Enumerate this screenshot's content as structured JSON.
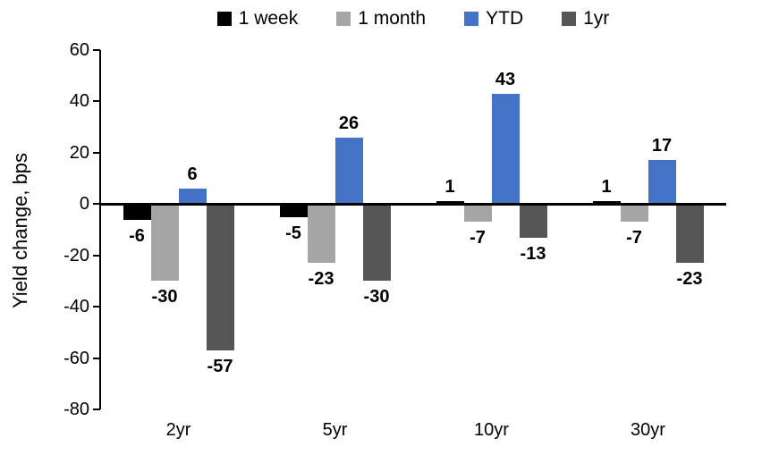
{
  "chart_data": {
    "type": "bar",
    "title": "",
    "ylabel": "Yield change, bps",
    "xlabel": "",
    "categories": [
      "2yr",
      "5yr",
      "10yr",
      "30yr"
    ],
    "series": [
      {
        "name": "1 week",
        "color": "#000000",
        "values": [
          -6,
          -5,
          1,
          1
        ]
      },
      {
        "name": "1 month",
        "color": "#A5A5A5",
        "values": [
          -30,
          -23,
          -7,
          -7
        ]
      },
      {
        "name": "YTD",
        "color": "#4472C4",
        "values": [
          6,
          26,
          43,
          17
        ]
      },
      {
        "name": "1yr",
        "color": "#555555",
        "values": [
          -57,
          -30,
          -13,
          -23
        ]
      }
    ],
    "ylim": [
      -80,
      60
    ],
    "yticks": [
      60,
      40,
      20,
      0,
      -20,
      -40,
      -60,
      -80
    ],
    "grid": false,
    "legend_position": "top",
    "data_labels": true
  }
}
